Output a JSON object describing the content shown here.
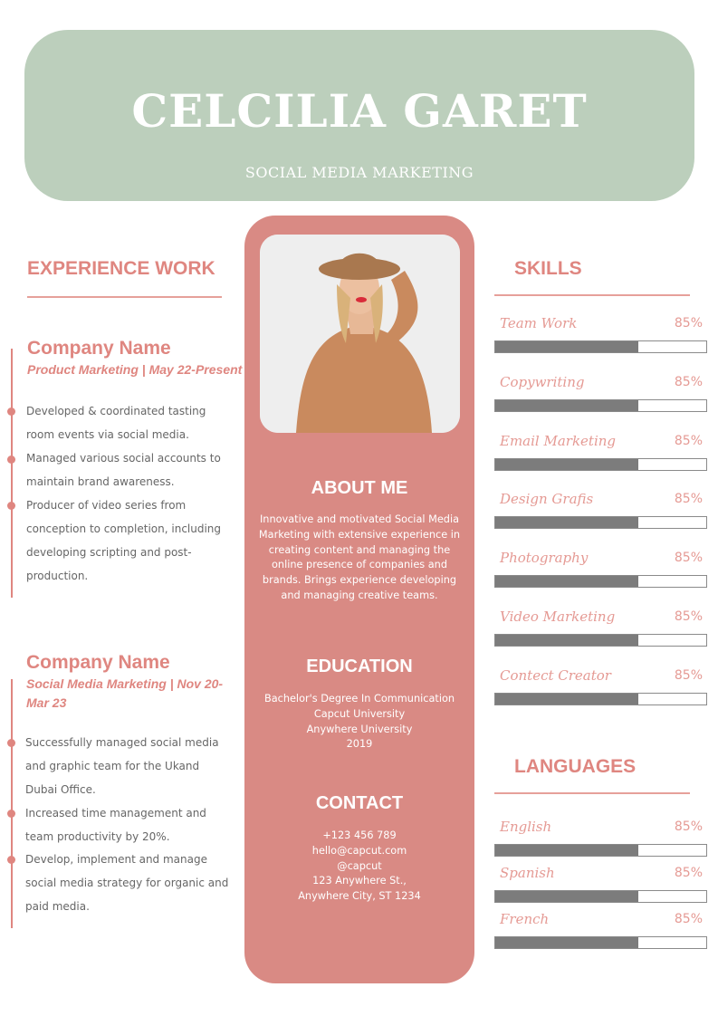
{
  "header": {
    "name": "CELCILIA GARET",
    "role": "SOCIAL MEDIA MARKETING",
    "color": "#bccfbc"
  },
  "experience": {
    "title": "EXPERIENCE WORK",
    "jobs": [
      {
        "company": "Company Name",
        "position": "Product Marketing | May 22-Present",
        "bullets": [
          "Developed & coordinated tasting room events via social media.",
          "Managed various social accounts to maintain brand awareness.",
          "Producer of video series from conception to completion, including developing scripting and post-production."
        ]
      },
      {
        "company": "Company Name",
        "position": "Social Media Marketing | Nov 20-Mar 23",
        "bullets": [
          "Successfully managed social media and graphic team for the Ukand Dubai Office.",
          "Increased time management and team productivity by 20%.",
          "Develop, implement and manage social media strategy for organic and paid media."
        ]
      }
    ]
  },
  "about": {
    "title": "ABOUT ME",
    "text": "Innovative and motivated Social Media Marketing with extensive experience in creating content and managing the online presence of companies and brands. Brings experience developing and managing creative teams."
  },
  "education": {
    "title": "EDUCATION",
    "lines": [
      "Bachelor's Degree In Communication",
      "Capcut University",
      "Anywhere University",
      "2019"
    ]
  },
  "contact": {
    "title": "CONTACT",
    "lines": [
      "+123  456 789",
      "hello@capcut.com",
      "@capcut",
      "123 Anywhere St.,",
      "Anywhere City, ST 1234"
    ]
  },
  "skills": {
    "title": "SKILLS",
    "items": [
      {
        "label": "Team Work",
        "value": "85%",
        "fill": 68
      },
      {
        "label": "Copywriting",
        "value": "85%",
        "fill": 68
      },
      {
        "label": "Email Marketing",
        "value": "85%",
        "fill": 68
      },
      {
        "label": "Design Grafis",
        "value": "85%",
        "fill": 68
      },
      {
        "label": "Photography",
        "value": "85%",
        "fill": 68
      },
      {
        "label": "Video Marketing",
        "value": "85%",
        "fill": 68
      },
      {
        "label": "Contect Creator",
        "value": "85%",
        "fill": 68
      }
    ]
  },
  "languages": {
    "title": "LANGUAGES",
    "items": [
      {
        "label": "English",
        "value": "85%",
        "fill": 68
      },
      {
        "label": "Spanish",
        "value": "85%",
        "fill": 68
      },
      {
        "label": "French",
        "value": "85%",
        "fill": 68
      }
    ]
  },
  "colors": {
    "accent": "#df8680",
    "panel": "#d98a84",
    "bar": "#7c7c7c"
  }
}
